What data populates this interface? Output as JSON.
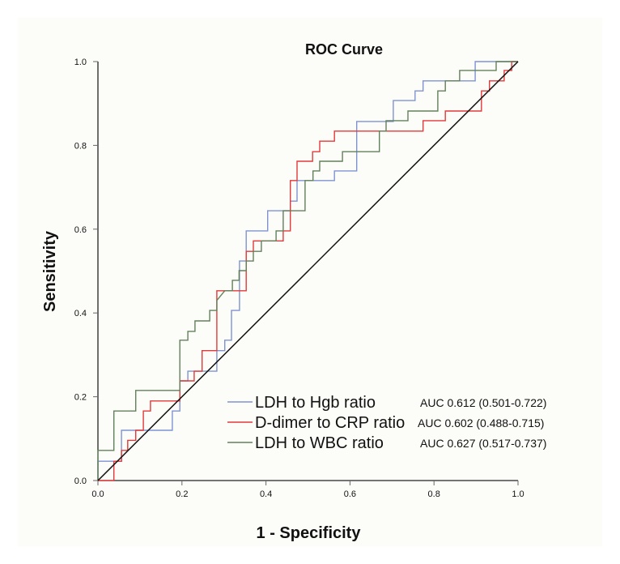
{
  "chart_data": {
    "type": "line",
    "title": "ROC Curve",
    "xlabel": "1 - Specificity",
    "ylabel": "Sensitivity",
    "xlim": [
      0,
      1
    ],
    "ylim": [
      0,
      1
    ],
    "xticks": [
      "0.0",
      "0.2",
      "0.4",
      "0.6",
      "0.8",
      "1.0"
    ],
    "yticks": [
      "0.0",
      "0.2",
      "0.4",
      "0.6",
      "0.8",
      "1.0"
    ],
    "grid": false,
    "legend_position": "bottom-right",
    "reference_line": {
      "name": "chance",
      "points": [
        [
          0,
          0
        ],
        [
          1,
          1
        ]
      ],
      "color": "#111111"
    },
    "series": [
      {
        "name": "LDH to Hgb ratio",
        "auc_label": "AUC 0.612 (0.501-0.722)",
        "color": "#7f93d2",
        "points": [
          [
            0,
            0
          ],
          [
            0,
            0.046
          ],
          [
            0.056,
            0.046
          ],
          [
            0.056,
            0.12
          ],
          [
            0.177,
            0.12
          ],
          [
            0.177,
            0.166
          ],
          [
            0.195,
            0.166
          ],
          [
            0.195,
            0.238
          ],
          [
            0.214,
            0.238
          ],
          [
            0.214,
            0.261
          ],
          [
            0.283,
            0.261
          ],
          [
            0.283,
            0.31
          ],
          [
            0.302,
            0.31
          ],
          [
            0.302,
            0.335
          ],
          [
            0.318,
            0.335
          ],
          [
            0.318,
            0.406
          ],
          [
            0.337,
            0.406
          ],
          [
            0.337,
            0.5
          ],
          [
            0.337,
            0.524
          ],
          [
            0.353,
            0.524
          ],
          [
            0.353,
            0.596
          ],
          [
            0.404,
            0.596
          ],
          [
            0.404,
            0.644
          ],
          [
            0.458,
            0.644
          ],
          [
            0.458,
            0.667
          ],
          [
            0.474,
            0.667
          ],
          [
            0.474,
            0.716
          ],
          [
            0.563,
            0.716
          ],
          [
            0.563,
            0.739
          ],
          [
            0.616,
            0.739
          ],
          [
            0.616,
            0.857
          ],
          [
            0.703,
            0.857
          ],
          [
            0.703,
            0.907
          ],
          [
            0.755,
            0.907
          ],
          [
            0.755,
            0.93
          ],
          [
            0.774,
            0.93
          ],
          [
            0.774,
            0.954
          ],
          [
            0.898,
            0.954
          ],
          [
            0.898,
            1.0
          ],
          [
            1.0,
            1.0
          ]
        ]
      },
      {
        "name": "D-dimer to CRP ratio",
        "auc_label": "AUC 0.602 (0.488-0.715)",
        "color": "#e23a3a",
        "points": [
          [
            0,
            0
          ],
          [
            0.038,
            0
          ],
          [
            0.038,
            0.046
          ],
          [
            0.056,
            0.046
          ],
          [
            0.056,
            0.072
          ],
          [
            0.071,
            0.072
          ],
          [
            0.071,
            0.096
          ],
          [
            0.09,
            0.096
          ],
          [
            0.09,
            0.12
          ],
          [
            0.108,
            0.12
          ],
          [
            0.108,
            0.166
          ],
          [
            0.125,
            0.166
          ],
          [
            0.125,
            0.19
          ],
          [
            0.195,
            0.19
          ],
          [
            0.195,
            0.238
          ],
          [
            0.229,
            0.238
          ],
          [
            0.229,
            0.261
          ],
          [
            0.248,
            0.261
          ],
          [
            0.248,
            0.31
          ],
          [
            0.283,
            0.31
          ],
          [
            0.283,
            0.453
          ],
          [
            0.353,
            0.453
          ],
          [
            0.353,
            0.547
          ],
          [
            0.37,
            0.547
          ],
          [
            0.37,
            0.572
          ],
          [
            0.441,
            0.572
          ],
          [
            0.441,
            0.596
          ],
          [
            0.458,
            0.596
          ],
          [
            0.458,
            0.716
          ],
          [
            0.474,
            0.716
          ],
          [
            0.474,
            0.762
          ],
          [
            0.511,
            0.762
          ],
          [
            0.511,
            0.785
          ],
          [
            0.528,
            0.785
          ],
          [
            0.528,
            0.81
          ],
          [
            0.563,
            0.81
          ],
          [
            0.563,
            0.834
          ],
          [
            0.774,
            0.834
          ],
          [
            0.774,
            0.859
          ],
          [
            0.827,
            0.859
          ],
          [
            0.827,
            0.882
          ],
          [
            0.913,
            0.882
          ],
          [
            0.913,
            0.93
          ],
          [
            0.932,
            0.93
          ],
          [
            0.932,
            0.954
          ],
          [
            0.967,
            0.954
          ],
          [
            0.967,
            0.979
          ],
          [
            0.985,
            0.979
          ],
          [
            0.985,
            1.0
          ],
          [
            1.0,
            1.0
          ]
        ]
      },
      {
        "name": "LDH to WBC ratio",
        "auc_label": "AUC 0.627 (0.517-0.737)",
        "color": "#62805a",
        "points": [
          [
            0,
            0
          ],
          [
            0,
            0.072
          ],
          [
            0.038,
            0.072
          ],
          [
            0.038,
            0.166
          ],
          [
            0.09,
            0.166
          ],
          [
            0.09,
            0.215
          ],
          [
            0.195,
            0.215
          ],
          [
            0.195,
            0.335
          ],
          [
            0.214,
            0.335
          ],
          [
            0.214,
            0.356
          ],
          [
            0.231,
            0.356
          ],
          [
            0.231,
            0.381
          ],
          [
            0.266,
            0.381
          ],
          [
            0.266,
            0.406
          ],
          [
            0.283,
            0.406
          ],
          [
            0.283,
            0.43
          ],
          [
            0.302,
            0.453
          ],
          [
            0.32,
            0.453
          ],
          [
            0.32,
            0.478
          ],
          [
            0.336,
            0.478
          ],
          [
            0.336,
            0.501
          ],
          [
            0.353,
            0.501
          ],
          [
            0.353,
            0.524
          ],
          [
            0.37,
            0.524
          ],
          [
            0.37,
            0.547
          ],
          [
            0.389,
            0.547
          ],
          [
            0.389,
            0.572
          ],
          [
            0.424,
            0.572
          ],
          [
            0.424,
            0.596
          ],
          [
            0.441,
            0.596
          ],
          [
            0.441,
            0.644
          ],
          [
            0.493,
            0.644
          ],
          [
            0.493,
            0.716
          ],
          [
            0.512,
            0.716
          ],
          [
            0.512,
            0.739
          ],
          [
            0.528,
            0.739
          ],
          [
            0.528,
            0.762
          ],
          [
            0.582,
            0.762
          ],
          [
            0.582,
            0.785
          ],
          [
            0.67,
            0.785
          ],
          [
            0.67,
            0.834
          ],
          [
            0.686,
            0.834
          ],
          [
            0.686,
            0.859
          ],
          [
            0.738,
            0.859
          ],
          [
            0.738,
            0.882
          ],
          [
            0.809,
            0.882
          ],
          [
            0.809,
            0.93
          ],
          [
            0.827,
            0.93
          ],
          [
            0.827,
            0.954
          ],
          [
            0.861,
            0.954
          ],
          [
            0.861,
            0.979
          ],
          [
            0.948,
            0.979
          ],
          [
            0.948,
            1.0
          ],
          [
            1.0,
            1.0
          ]
        ]
      }
    ]
  }
}
